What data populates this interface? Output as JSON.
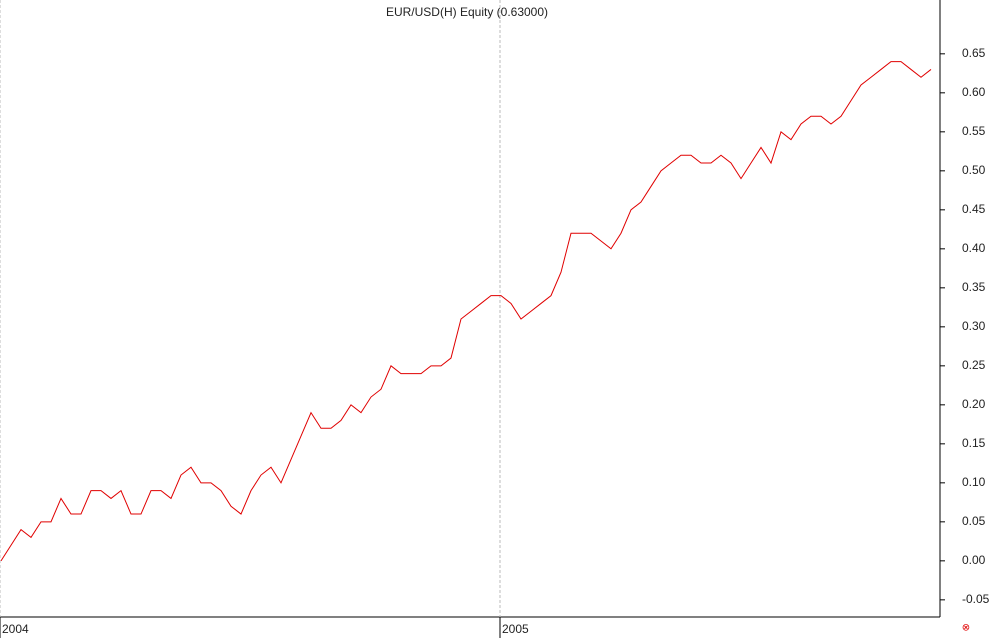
{
  "chart_data": {
    "type": "line",
    "title": "EUR/USD(H) Equity (0.63000)",
    "categories": [
      "2004",
      null,
      null,
      null,
      null,
      null,
      null,
      null,
      null,
      null,
      null,
      null,
      null,
      null,
      null,
      null,
      null,
      null,
      null,
      null,
      null,
      null,
      null,
      null,
      null,
      null,
      null,
      null,
      null,
      null,
      null,
      null,
      null,
      null,
      null,
      null,
      null,
      null,
      null,
      null,
      null,
      null,
      null,
      null,
      null,
      null,
      null,
      null,
      null,
      null,
      "2005",
      null,
      null,
      null,
      null,
      null,
      null,
      null,
      null,
      null,
      null,
      null,
      null,
      null,
      null,
      null,
      null,
      null,
      null,
      null,
      null,
      null,
      null,
      null,
      null,
      null,
      null,
      null,
      null,
      null,
      null,
      null,
      null,
      null,
      null,
      null,
      null,
      null,
      null,
      null,
      null,
      null,
      null,
      null
    ],
    "values": [
      0.0,
      0.02,
      0.04,
      0.03,
      0.05,
      0.05,
      0.08,
      0.06,
      0.06,
      0.09,
      0.09,
      0.08,
      0.09,
      0.06,
      0.06,
      0.09,
      0.09,
      0.08,
      0.11,
      0.12,
      0.1,
      0.1,
      0.09,
      0.07,
      0.06,
      0.09,
      0.11,
      0.12,
      0.1,
      0.13,
      0.16,
      0.19,
      0.17,
      0.17,
      0.18,
      0.2,
      0.19,
      0.21,
      0.22,
      0.25,
      0.24,
      0.24,
      0.24,
      0.25,
      0.25,
      0.26,
      0.31,
      0.32,
      0.33,
      0.34,
      0.34,
      0.33,
      0.31,
      0.32,
      0.33,
      0.34,
      0.37,
      0.42,
      0.42,
      0.42,
      0.41,
      0.4,
      0.42,
      0.45,
      0.46,
      0.48,
      0.5,
      0.51,
      0.52,
      0.52,
      0.51,
      0.51,
      0.52,
      0.51,
      0.49,
      0.51,
      0.53,
      0.51,
      0.55,
      0.54,
      0.56,
      0.57,
      0.57,
      0.56,
      0.57,
      0.59,
      0.61,
      0.62,
      0.63,
      0.64,
      0.64,
      0.63,
      0.62,
      0.63
    ],
    "color": "#e00000",
    "ylim": [
      -0.072,
      0.719
    ],
    "yticks": [
      -0.05,
      {
        "value": 0,
        "label": "0.00"
      },
      0.05,
      {
        "value": 0.1,
        "label": "0.10"
      },
      0.15,
      {
        "value": 0.2,
        "label": "0.20"
      },
      0.25,
      {
        "value": 0.3,
        "label": "0.30"
      },
      0.35,
      {
        "value": 0.4,
        "label": "0.40"
      },
      0.45,
      {
        "value": 0.5,
        "label": "0.50"
      },
      0.55,
      {
        "value": 0.6,
        "label": "0.60"
      },
      0.65
    ],
    "grid": true
  }
}
